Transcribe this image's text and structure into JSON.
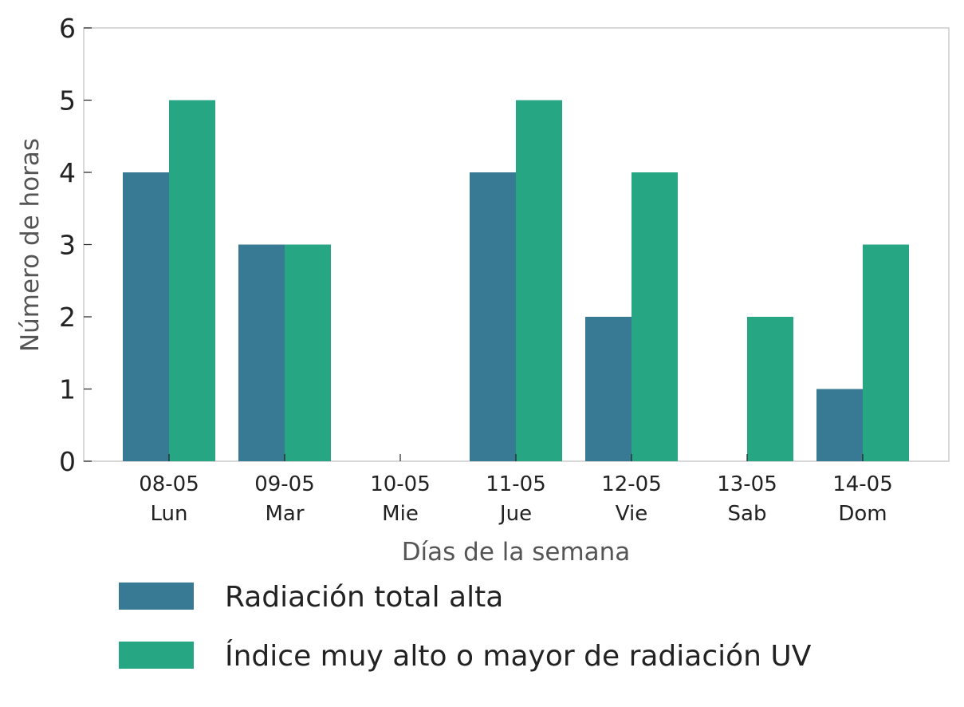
{
  "chart_data": {
    "type": "bar",
    "categories": [
      "08-05\nLun",
      "09-05\nMar",
      "10-05\nMie",
      "11-05\nJue",
      "12-05\nVie",
      "13-05\nSab",
      "14-05\nDom"
    ],
    "category_lines": [
      [
        "08-05",
        "Lun"
      ],
      [
        "09-05",
        "Mar"
      ],
      [
        "10-05",
        "Mie"
      ],
      [
        "11-05",
        "Jue"
      ],
      [
        "12-05",
        "Vie"
      ],
      [
        "13-05",
        "Sab"
      ],
      [
        "14-05",
        "Dom"
      ]
    ],
    "series": [
      {
        "name": "Radiación total alta",
        "values": [
          4,
          3,
          0,
          4,
          2,
          0,
          1
        ],
        "color": "#387a93"
      },
      {
        "name": "Índice muy alto o mayor de radiación UV",
        "values": [
          5,
          3,
          0,
          5,
          4,
          2,
          3
        ],
        "color": "#27a684"
      }
    ],
    "xlabel": "Días de la semana",
    "ylabel": "Número de horas",
    "ylim": [
      0,
      6
    ],
    "yticks": [
      0,
      1,
      2,
      3,
      4,
      5,
      6
    ],
    "grid": false,
    "legend_position": "bottom-left"
  }
}
